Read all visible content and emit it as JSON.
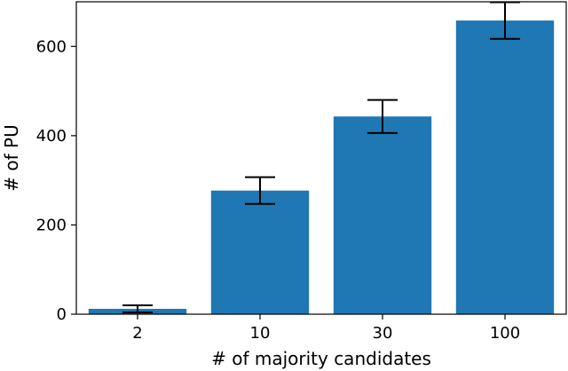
{
  "chart_data": {
    "type": "bar",
    "title": "",
    "xlabel": "# of majority candidates",
    "ylabel": "# of PU",
    "categories": [
      "2",
      "10",
      "30",
      "100"
    ],
    "values": [
      12,
      277,
      443,
      658
    ],
    "error": [
      8,
      30,
      37,
      41
    ],
    "ylim": [
      0,
      700
    ],
    "yticks": [
      0,
      200,
      400,
      600
    ],
    "grid": false,
    "bar_color": "#1f77b4",
    "errorbar_color": "#000000"
  }
}
